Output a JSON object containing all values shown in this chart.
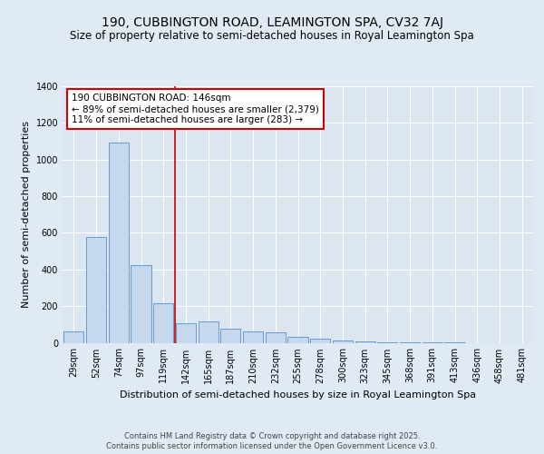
{
  "title1": "190, CUBBINGTON ROAD, LEAMINGTON SPA, CV32 7AJ",
  "title2": "Size of property relative to semi-detached houses in Royal Leamington Spa",
  "xlabel": "Distribution of semi-detached houses by size in Royal Leamington Spa",
  "ylabel": "Number of semi-detached properties",
  "categories": [
    "29sqm",
    "52sqm",
    "74sqm",
    "97sqm",
    "119sqm",
    "142sqm",
    "165sqm",
    "187sqm",
    "210sqm",
    "232sqm",
    "255sqm",
    "278sqm",
    "300sqm",
    "323sqm",
    "345sqm",
    "368sqm",
    "391sqm",
    "413sqm",
    "436sqm",
    "458sqm",
    "481sqm"
  ],
  "values": [
    60,
    575,
    1095,
    425,
    215,
    105,
    115,
    75,
    60,
    55,
    30,
    20,
    10,
    5,
    3,
    2,
    1,
    1,
    0,
    0,
    0
  ],
  "bar_color": "#c5d8ee",
  "bar_edge_color": "#5b8fc9",
  "annotation_title": "190 CUBBINGTON ROAD: 146sqm",
  "annotation_line1": "← 89% of semi-detached houses are smaller (2,379)",
  "annotation_line2": "11% of semi-detached houses are larger (283) →",
  "annotation_box_color": "#ffffff",
  "annotation_box_edge_color": "#cc0000",
  "vline_color": "#cc0000",
  "ylim": [
    0,
    1400
  ],
  "yticks": [
    0,
    200,
    400,
    600,
    800,
    1000,
    1200,
    1400
  ],
  "footer1": "Contains HM Land Registry data © Crown copyright and database right 2025.",
  "footer2": "Contains public sector information licensed under the Open Government Licence v3.0.",
  "fig_bg_color": "#e0eaf5",
  "plot_bg_color": "#dce6f1",
  "grid_color": "#ffffff",
  "title_fontsize": 10,
  "subtitle_fontsize": 8.5,
  "tick_fontsize": 7,
  "ylabel_fontsize": 8,
  "xlabel_fontsize": 8,
  "footer_fontsize": 6,
  "ann_fontsize": 7.5
}
